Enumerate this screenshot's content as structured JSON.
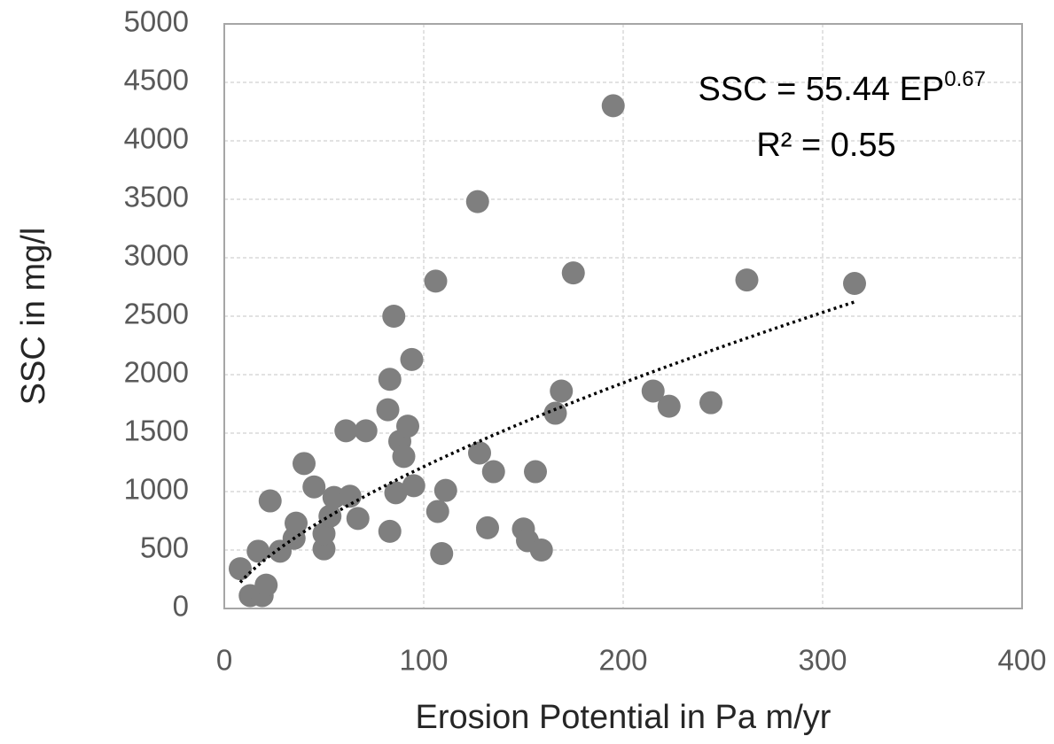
{
  "chart_data": {
    "type": "scatter",
    "x_label": "Erosion Potential in Pa m/yr",
    "y_label": "SSC in mg/l",
    "annotations": {
      "equation": "SSC = 55.44 EP",
      "equation_exponent": "0.67",
      "r_squared": "R² = 0.55"
    },
    "series": [
      {
        "color": "#7f7f7f",
        "x": [
          8,
          13,
          19,
          21,
          17,
          23,
          28,
          35,
          36,
          40,
          45,
          50,
          50,
          53,
          55,
          63,
          67,
          61,
          71,
          82,
          83,
          85,
          83,
          86,
          88,
          90,
          92,
          95,
          94,
          106,
          107,
          111,
          109,
          127,
          128,
          135,
          132,
          150,
          152,
          159,
          156,
          166,
          169,
          175,
          195,
          215,
          223,
          244,
          262,
          316
        ],
        "values": [
          340,
          110,
          110,
          200,
          490,
          920,
          490,
          600,
          730,
          1240,
          1040,
          510,
          640,
          790,
          950,
          960,
          770,
          1520,
          1520,
          1700,
          1960,
          2500,
          660,
          990,
          1430,
          1300,
          1560,
          1050,
          2130,
          2800,
          830,
          1010,
          470,
          3480,
          1330,
          1170,
          690,
          680,
          580,
          500,
          1170,
          1670,
          1860,
          2870,
          4300,
          1860,
          1730,
          1760,
          2810,
          2780
        ]
      }
    ],
    "trendline": {
      "kind": "power",
      "coefficient": 55.44,
      "exponent": 0.67,
      "color": "#000000"
    },
    "xlim": [
      0,
      400
    ],
    "xticks": [
      0,
      100,
      200,
      300,
      400
    ],
    "ylim": [
      0,
      5000
    ],
    "yticks": [
      0,
      500,
      1000,
      1500,
      2000,
      2500,
      3000,
      3500,
      4000,
      4500,
      5000
    ],
    "grid": true
  }
}
